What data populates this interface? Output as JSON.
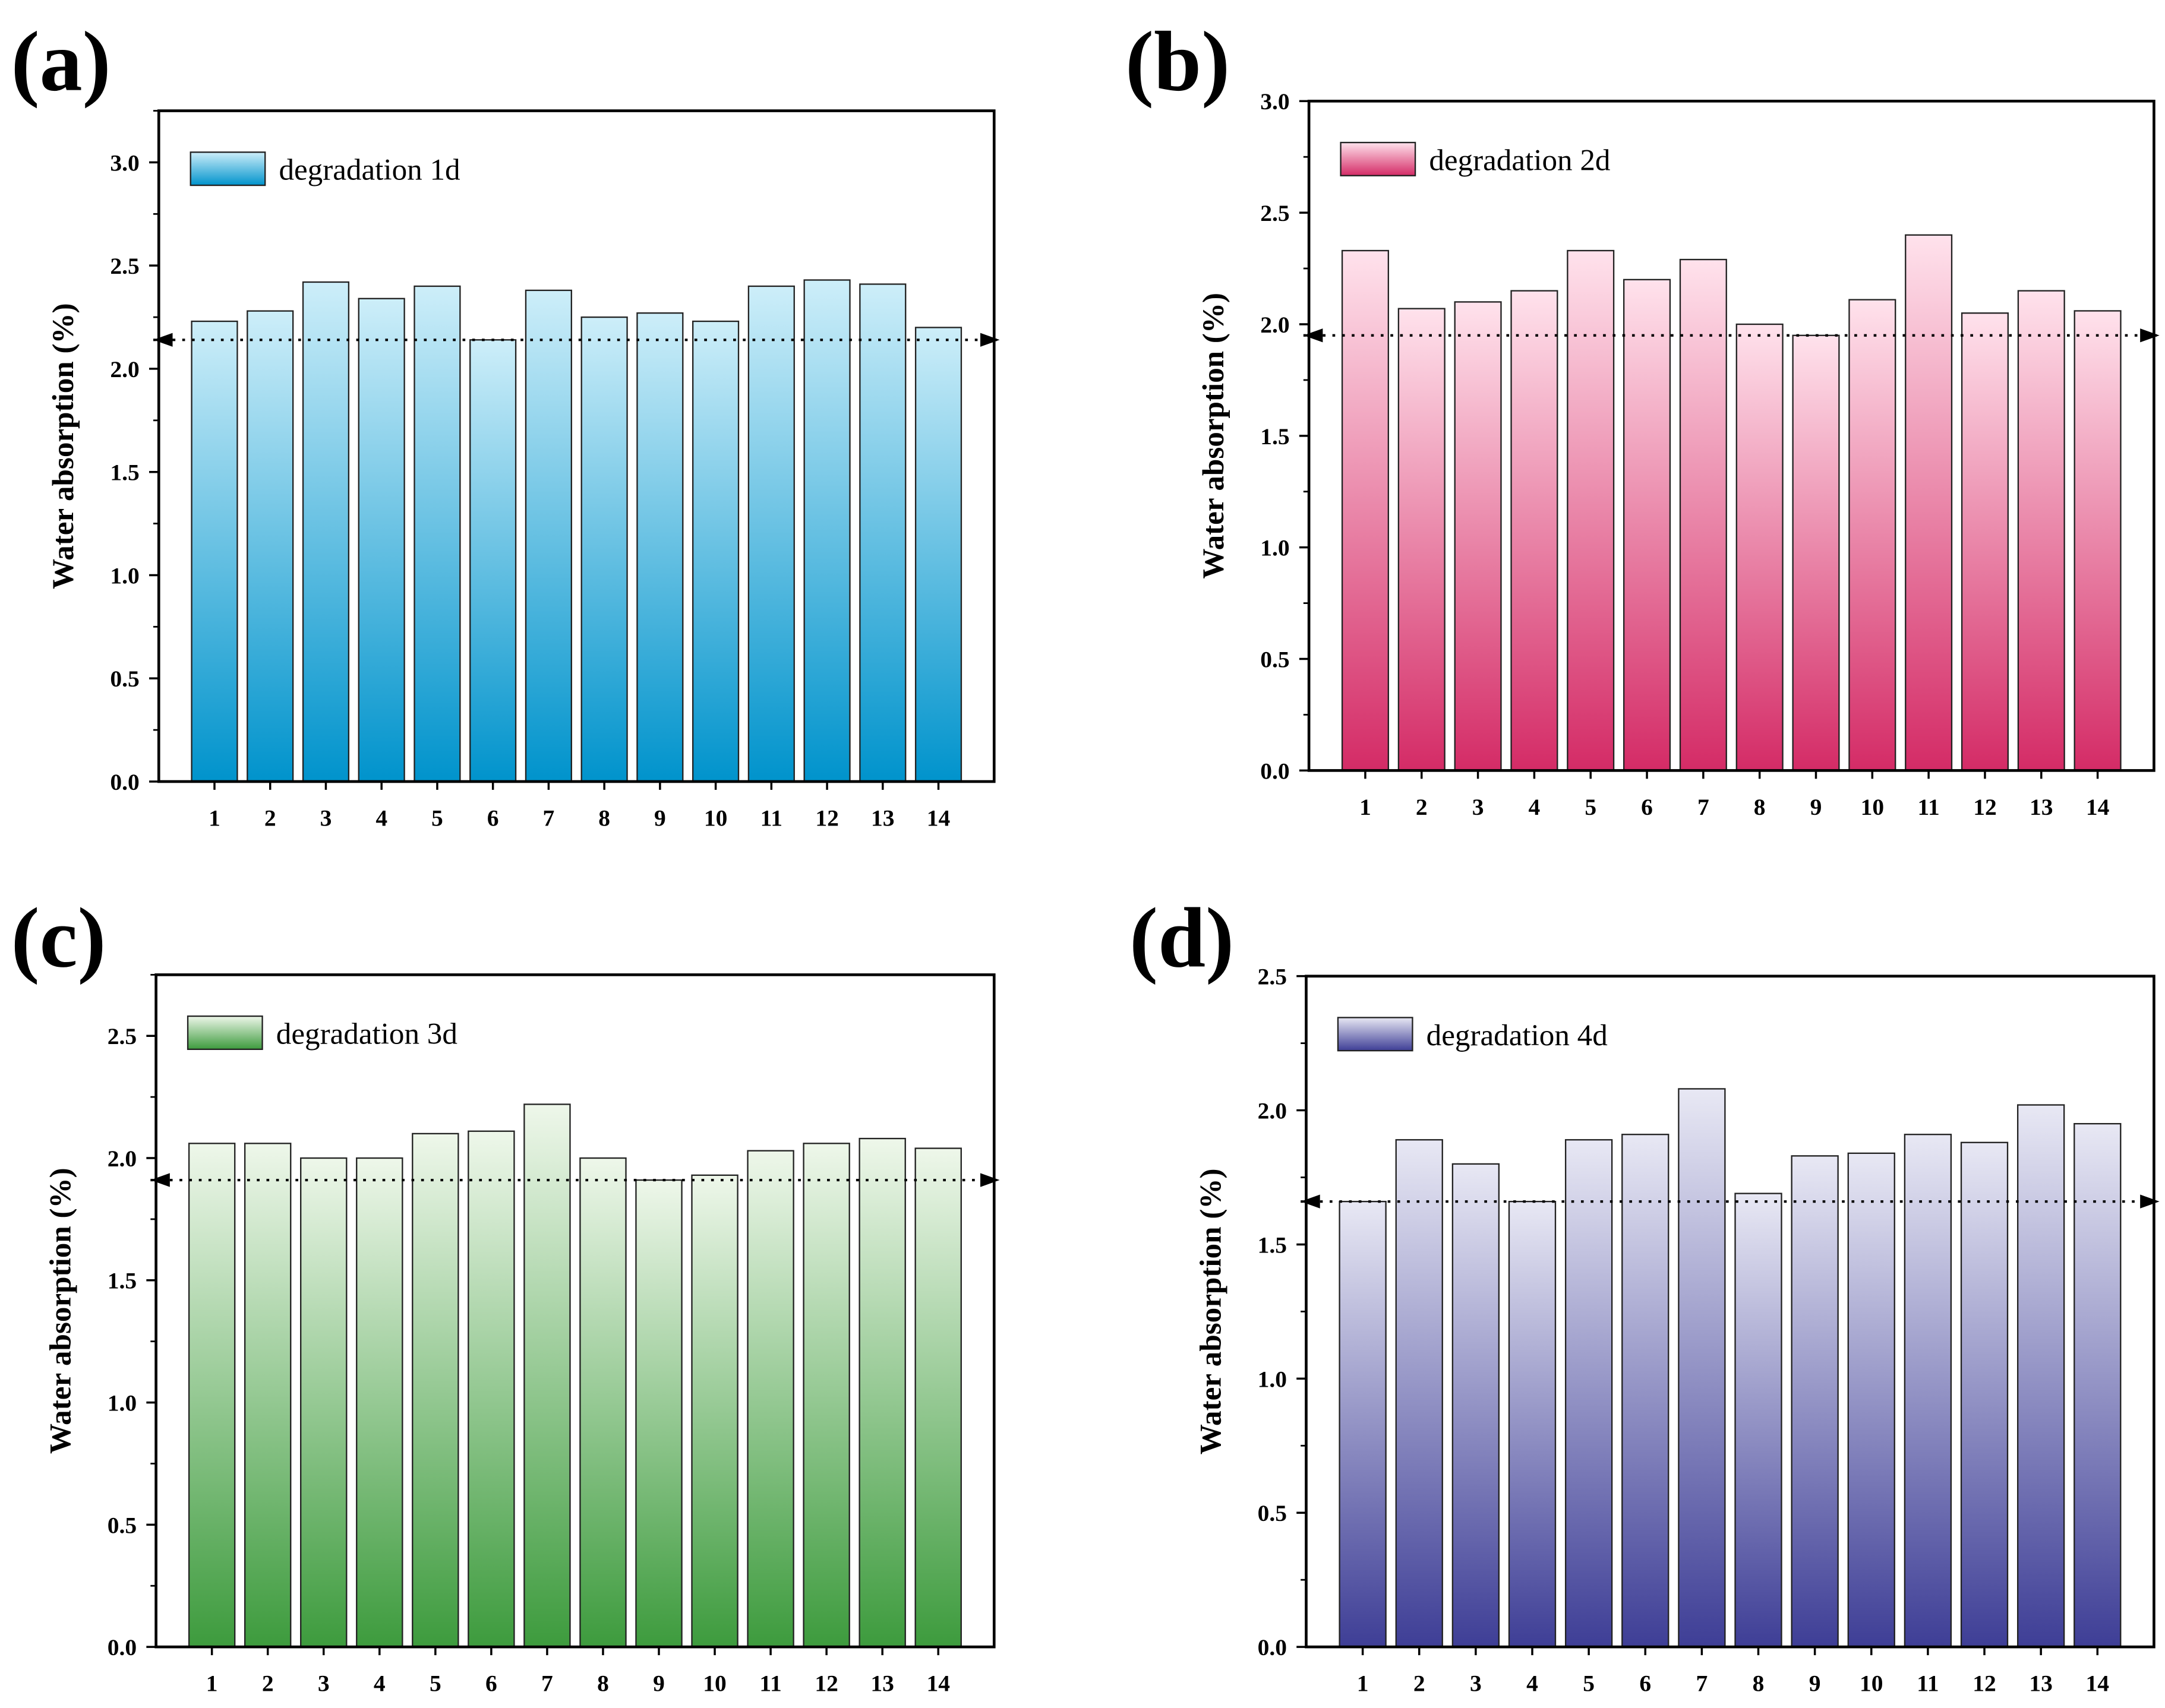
{
  "chart_data": [
    {
      "type": "bar",
      "panel_label": "(a)",
      "legend": "degradation 1d",
      "legend_placement": "top-left",
      "ylabel": "Water absorption (%)",
      "xlabel": "",
      "categories": [
        "1",
        "2",
        "3",
        "4",
        "5",
        "6",
        "7",
        "8",
        "9",
        "10",
        "11",
        "12",
        "13",
        "14"
      ],
      "values": [
        2.23,
        2.28,
        2.42,
        2.34,
        2.4,
        2.14,
        2.38,
        2.25,
        2.27,
        2.23,
        2.4,
        2.43,
        2.41,
        2.2
      ],
      "reference_line": 2.14,
      "ylim": [
        0,
        3.25
      ],
      "yticks": [
        "0.0",
        "0.5",
        "1.0",
        "1.5",
        "2.0",
        "2.5",
        "3.0"
      ],
      "colors": {
        "top": "#cdeef9",
        "bottom": "#0093cc"
      }
    },
    {
      "type": "bar",
      "panel_label": "(b)",
      "legend": "degradation 2d",
      "legend_placement": "top-left",
      "ylabel": "Water absorption (%)",
      "xlabel": "",
      "categories": [
        "1",
        "2",
        "3",
        "4",
        "5",
        "6",
        "7",
        "8",
        "9",
        "10",
        "11",
        "12",
        "13",
        "14"
      ],
      "values": [
        2.33,
        2.07,
        2.1,
        2.15,
        2.33,
        2.2,
        2.29,
        2.0,
        1.95,
        2.11,
        2.4,
        2.05,
        2.15,
        2.06
      ],
      "reference_line": 1.95,
      "ylim": [
        0,
        3.0
      ],
      "yticks": [
        "0.0",
        "0.5",
        "1.0",
        "1.5",
        "2.0",
        "2.5",
        "3.0"
      ],
      "colors": {
        "top": "#ffe2ec",
        "bottom": "#d42b66"
      }
    },
    {
      "type": "bar",
      "panel_label": "(c)",
      "legend": "degradation 3d",
      "legend_placement": "top-left",
      "ylabel": "Water absorption (%)",
      "xlabel": "",
      "categories": [
        "1",
        "2",
        "3",
        "4",
        "5",
        "6",
        "7",
        "8",
        "9",
        "10",
        "11",
        "12",
        "13",
        "14"
      ],
      "values": [
        2.06,
        2.06,
        2.0,
        2.0,
        2.1,
        2.11,
        2.22,
        2.0,
        1.91,
        1.93,
        2.03,
        2.06,
        2.08,
        2.04
      ],
      "reference_line": 1.91,
      "ylim": [
        0,
        2.75
      ],
      "yticks": [
        "0.0",
        "0.5",
        "1.0",
        "1.5",
        "2.0",
        "2.5"
      ],
      "colors": {
        "top": "#eef7ea",
        "bottom": "#3d9b3d"
      }
    },
    {
      "type": "bar",
      "panel_label": "(d)",
      "legend": "degradation 4d",
      "legend_placement": "top-left",
      "ylabel": "Water absorption (%)",
      "xlabel": "",
      "categories": [
        "1",
        "2",
        "3",
        "4",
        "5",
        "6",
        "7",
        "8",
        "9",
        "10",
        "11",
        "12",
        "13",
        "14"
      ],
      "values": [
        1.66,
        1.89,
        1.8,
        1.66,
        1.89,
        1.91,
        2.08,
        1.69,
        1.83,
        1.84,
        1.91,
        1.88,
        2.02,
        1.95
      ],
      "reference_line": 1.66,
      "ylim": [
        0,
        2.5
      ],
      "yticks": [
        "0.0",
        "0.5",
        "1.0",
        "1.5",
        "2.0",
        "2.5"
      ],
      "colors": {
        "top": "#e8e8f4",
        "bottom": "#3e3e96"
      }
    }
  ]
}
